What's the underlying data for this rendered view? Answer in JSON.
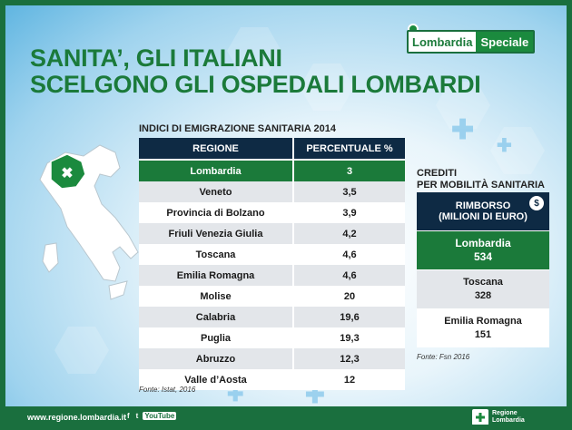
{
  "header": {
    "title_line1": "SANITA’, GLI ITALIANI",
    "title_line2": "SCELGONO GLI OSPEDALI LOMBARDI",
    "logo_left": "Lombardia",
    "logo_right": "Speciale"
  },
  "emigration_table": {
    "title": "INDICI DI EMIGRAZIONE SANITARIA 2014",
    "col_region": "REGIONE",
    "col_percent": "PERCENTUALE %",
    "rows": [
      {
        "region": "Lombardia",
        "value": "3"
      },
      {
        "region": "Veneto",
        "value": "3,5"
      },
      {
        "region": "Provincia di Bolzano",
        "value": "3,9"
      },
      {
        "region": "Friuli Venezia Giulia",
        "value": "4,2"
      },
      {
        "region": "Toscana",
        "value": "4,6"
      },
      {
        "region": "Emilia Romagna",
        "value": "4,6"
      },
      {
        "region": "Molise",
        "value": "20"
      },
      {
        "region": "Calabria",
        "value": "19,6"
      },
      {
        "region": "Puglia",
        "value": "19,3"
      },
      {
        "region": "Abruzzo",
        "value": "12,3"
      },
      {
        "region": "Valle d’Aosta",
        "value": "12"
      }
    ],
    "source": "Fonte: Istat, 2016"
  },
  "credits_table": {
    "title_line1": "CREDITI",
    "title_line2": "PER MOBILITÀ SANITARIA",
    "header_line1": "RIMBORSO",
    "header_line2": "(MILIONI DI EURO)",
    "coin_symbol": "$",
    "rows": [
      {
        "region": "Lombardia",
        "value": "534"
      },
      {
        "region": "Toscana",
        "value": "328"
      },
      {
        "region": "Emilia Romagna",
        "value": "151"
      }
    ],
    "source": "Fonte: Fsn 2016"
  },
  "footer": {
    "url": "www.regione.lombardia.it",
    "social_fb": "f",
    "social_tw": "t",
    "social_yt": "YouTube",
    "brand_line1": "Regione",
    "brand_line2": "Lombardia"
  },
  "colors": {
    "green": "#1b7a3a",
    "navy": "#0e2a44",
    "frame_green": "#1a6f3e"
  }
}
